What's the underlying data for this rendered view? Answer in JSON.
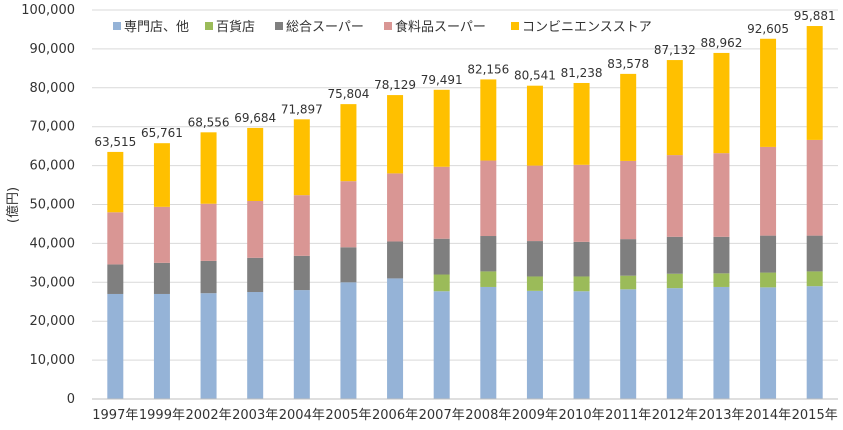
{
  "chart_data": {
    "type": "bar",
    "stacked": true,
    "title": "",
    "xlabel": "",
    "ylabel": "(億円)",
    "ylim": [
      0,
      100000
    ],
    "yticks": [
      0,
      10000,
      20000,
      30000,
      40000,
      50000,
      60000,
      70000,
      80000,
      90000,
      100000
    ],
    "ytick_labels": [
      "0",
      "10,000",
      "20,000",
      "30,000",
      "40,000",
      "50,000",
      "60,000",
      "70,000",
      "80,000",
      "90,000",
      "100,000"
    ],
    "grid": true,
    "legend_position": "top",
    "categories": [
      "1997年",
      "1999年",
      "2002年",
      "2003年",
      "2004年",
      "2005年",
      "2006年",
      "2007年",
      "2008年",
      "2009年",
      "2010年",
      "2011年",
      "2012年",
      "2013年",
      "2014年",
      "2015年"
    ],
    "totals": [
      63515,
      65761,
      68556,
      69684,
      71897,
      75804,
      78129,
      79491,
      82156,
      80541,
      81238,
      83578,
      87132,
      88962,
      92605,
      95881
    ],
    "total_labels": [
      "63,515",
      "65,761",
      "68,556",
      "69,684",
      "71,897",
      "75,804",
      "78,129",
      "79,491",
      "82,156",
      "80,541",
      "81,238",
      "83,578",
      "87,132",
      "88,962",
      "92,605",
      "95,881"
    ],
    "series": [
      {
        "name": "専門店、他",
        "color": "#95b3d7",
        "values": [
          27000,
          27000,
          27200,
          27500,
          28000,
          30000,
          31000,
          27700,
          28800,
          27800,
          27700,
          28200,
          28500,
          28800,
          28700,
          29000
        ]
      },
      {
        "name": "百貨店",
        "color": "#9bbb59",
        "values": [
          0,
          0,
          0,
          0,
          0,
          0,
          0,
          4300,
          4000,
          3700,
          3800,
          3500,
          3700,
          3500,
          3800,
          3800
        ]
      },
      {
        "name": "総合スーパー",
        "color": "#7f7f7f",
        "values": [
          7600,
          8000,
          8300,
          8800,
          8800,
          9000,
          9500,
          9200,
          9100,
          9100,
          8900,
          9400,
          9500,
          9400,
          9500,
          9200
        ]
      },
      {
        "name": "食料品スーパー",
        "color": "#d99694",
        "values": [
          13400,
          14400,
          14700,
          14600,
          15600,
          17000,
          17500,
          18500,
          19400,
          19400,
          19800,
          20100,
          21000,
          21500,
          22800,
          24600
        ]
      },
      {
        "name": "コンビニエンスストア",
        "color": "#ffc000",
        "values": [
          15515,
          16361,
          18356,
          18784,
          19497,
          19804,
          20129,
          19791,
          20856,
          20541,
          21038,
          22378,
          24432,
          25762,
          27805,
          29281
        ]
      }
    ]
  }
}
